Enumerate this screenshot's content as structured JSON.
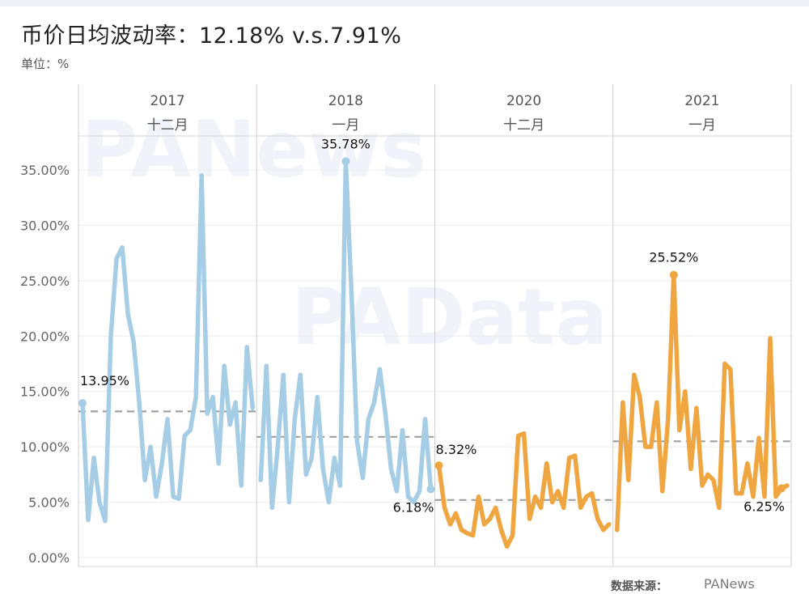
{
  "title": "币价日均波动率：12.18% v.s.7.91%",
  "unit_label": "单位：%",
  "source_label": "数据来源：",
  "brand_label": "PANews",
  "watermarks": [
    "PANews",
    "PAData"
  ],
  "chart_data": {
    "type": "line",
    "title": "币价日均波动率：12.18% v.s.7.91%",
    "ylabel": "单位：%",
    "ylim": [
      0,
      38
    ],
    "yticks": [
      "0.00%",
      "5.00%",
      "10.00%",
      "15.00%",
      "20.00%",
      "25.00%",
      "30.00%",
      "35.00%"
    ],
    "yticks_values": [
      0,
      5,
      10,
      15,
      20,
      25,
      30,
      35
    ],
    "grid": true,
    "colors": {
      "blue": "#a6cde6",
      "orange": "#f0a640",
      "mean": "#a0a0a0"
    },
    "panels": [
      {
        "year": "2017",
        "month": "十二月",
        "color": "blue",
        "values": [
          13.95,
          3.4,
          9.0,
          5.0,
          3.3,
          20.0,
          27.0,
          28.0,
          22.0,
          19.5,
          14.0,
          7.0,
          10.0,
          5.5,
          8.5,
          12.5,
          5.5,
          5.3,
          11.0,
          11.5,
          14.5,
          34.5,
          13.0,
          14.5,
          8.5,
          17.3,
          12.0,
          14.0,
          6.5,
          19.0,
          13.5
        ],
        "mean": 13.2,
        "labels": [
          {
            "text": "13.95%",
            "index": 0
          }
        ]
      },
      {
        "year": "2018",
        "month": "一月",
        "color": "blue",
        "values": [
          7.0,
          17.3,
          4.5,
          10.0,
          16.5,
          5.0,
          12.5,
          16.5,
          7.5,
          9.0,
          14.5,
          8.0,
          5.0,
          9.0,
          6.5,
          35.78,
          24.0,
          10.5,
          7.2,
          12.5,
          14.0,
          17.0,
          13.0,
          8.0,
          6.0,
          11.5,
          5.5,
          5.0,
          6.0,
          12.5,
          6.18
        ],
        "mean": 10.9,
        "labels": [
          {
            "text": "35.78%",
            "index": 15
          },
          {
            "text": "6.18%",
            "index": 30
          }
        ]
      },
      {
        "year": "2020",
        "month": "十二月",
        "color": "orange",
        "values": [
          8.32,
          4.5,
          3.0,
          4.0,
          2.5,
          2.2,
          2.0,
          5.5,
          3.0,
          3.5,
          4.5,
          2.5,
          1.0,
          2.0,
          11.0,
          11.2,
          3.5,
          5.5,
          4.5,
          8.5,
          5.0,
          6.0,
          4.5,
          9.0,
          9.2,
          4.5,
          5.5,
          5.8,
          3.5,
          2.5,
          3.0
        ],
        "mean": 5.2,
        "labels": [
          {
            "text": "8.32%",
            "index": 0
          }
        ]
      },
      {
        "year": "2021",
        "month": "一月",
        "color": "orange",
        "values": [
          2.5,
          14.0,
          7.0,
          16.5,
          14.5,
          10.0,
          10.0,
          14.0,
          6.0,
          12.5,
          25.52,
          11.5,
          15.0,
          8.0,
          13.5,
          6.5,
          7.5,
          7.0,
          4.5,
          17.5,
          17.0,
          5.8,
          5.8,
          8.5,
          5.5,
          10.8,
          5.5,
          19.8,
          5.5,
          6.25,
          6.5
        ],
        "mean": 10.5,
        "labels": [
          {
            "text": "25.52%",
            "index": 10
          },
          {
            "text": "6.25%",
            "index": 29
          }
        ]
      }
    ]
  }
}
